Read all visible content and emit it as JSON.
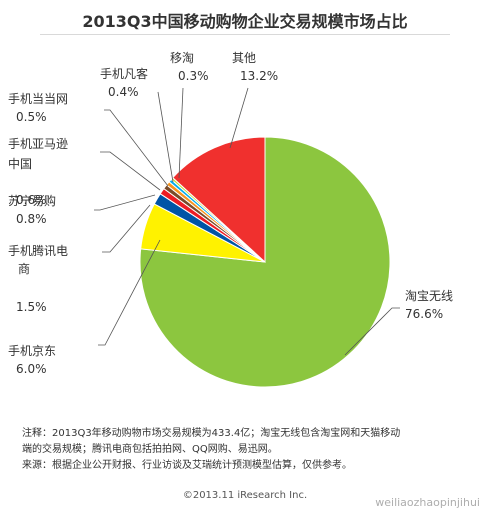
{
  "chart_data": {
    "type": "pie",
    "title": "2013Q3中国移动购物企业交易规模市场占比",
    "slices": [
      {
        "name": "淘宝无线",
        "value": 76.6,
        "label": "76.6%",
        "color": "#8CC63F"
      },
      {
        "name": "手机京东",
        "value": 6.0,
        "label": "6.0%",
        "color": "#FFF200"
      },
      {
        "name": "手机腾讯电商",
        "value": 1.5,
        "label": "1.5%",
        "color": "#0054A6"
      },
      {
        "name": "苏宁易购",
        "value": 0.8,
        "label": "0.8%",
        "color": "#ED1C24"
      },
      {
        "name": "手机亚马逊中国",
        "value": 0.6,
        "label": "0.6%",
        "color": "#7A4B2A"
      },
      {
        "name": "手机当当网",
        "value": 0.5,
        "label": "0.5%",
        "color": "#F7941D"
      },
      {
        "name": "手机凡客",
        "value": 0.4,
        "label": "0.4%",
        "color": "#00AEEF"
      },
      {
        "name": "移淘",
        "value": 0.3,
        "label": "0.3%",
        "color": "#C7D92F"
      },
      {
        "name": "其他",
        "value": 13.2,
        "label": "13.2%",
        "color": "#F0302E"
      }
    ]
  },
  "notes": {
    "line1": "注释：2013Q3年移动购物市场交易规模为433.4亿；淘宝无线包含淘宝网和天猫移动",
    "line2": "端的交易规模；腾讯电商包括拍拍网、QQ网购、易迅网。",
    "line3": "来源：根据企业公开财报、行业访谈及艾瑞统计预测模型估算，仅供参考。"
  },
  "copyright": "©2013.11 iResearch Inc.",
  "watermark": "weiliaozhaopinjihui"
}
